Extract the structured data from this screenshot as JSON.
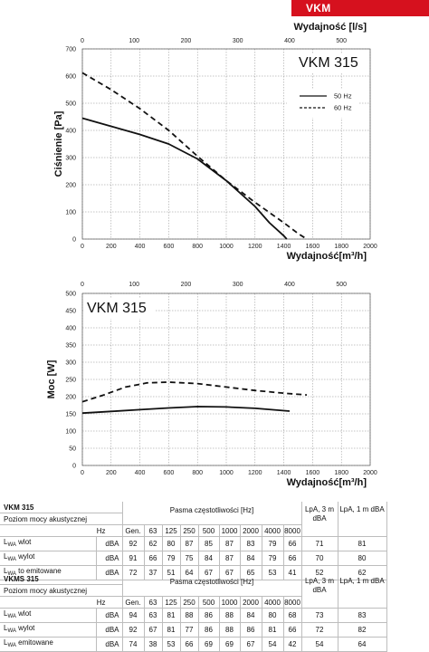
{
  "header": {
    "badge": "VKM"
  },
  "colors": {
    "badge": "#d6111e",
    "curve": "#111111"
  },
  "chart_data": [
    {
      "type": "line",
      "title": "VKM 315",
      "ylabel": "Ciśnienie [Pa]",
      "xlabel": "Wydajność[m³/h]",
      "x2label": "Wydajność [l/s]",
      "xlim": [
        0,
        2000
      ],
      "ylim": [
        0,
        700
      ],
      "xticks": [
        "0",
        "200",
        "400",
        "600",
        "800",
        "1000",
        "1200",
        "1400",
        "1600",
        "1800",
        "2000"
      ],
      "yticks": [
        "0",
        "100",
        "200",
        "300",
        "400",
        "500",
        "600",
        "700"
      ],
      "x2ticks": [
        "0",
        "100",
        "200",
        "300",
        "400",
        "500"
      ],
      "grid": true,
      "legend_position": "top-right",
      "series": [
        {
          "name": "50 Hz",
          "style": "solid",
          "x": [
            0,
            200,
            400,
            600,
            800,
            1000,
            1200,
            1300,
            1400,
            1420
          ],
          "y": [
            445,
            415,
            385,
            350,
            295,
            215,
            120,
            60,
            12,
            0
          ]
        },
        {
          "name": "60 Hz",
          "style": "dashed",
          "x": [
            0,
            200,
            400,
            600,
            800,
            1000,
            1200,
            1400,
            1500,
            1560
          ],
          "y": [
            612,
            550,
            480,
            400,
            305,
            215,
            135,
            60,
            20,
            0
          ]
        }
      ]
    },
    {
      "type": "line",
      "title": "VKM 315",
      "ylabel": "Moc [W]",
      "xlabel": "Wydajność[m³/h]",
      "x2label": "Wydajność [l/s]",
      "xlim": [
        0,
        2000
      ],
      "ylim": [
        0,
        500
      ],
      "xticks": [
        "0",
        "200",
        "400",
        "600",
        "800",
        "1000",
        "1200",
        "1400",
        "1600",
        "1800",
        "2000"
      ],
      "yticks": [
        "0",
        "50",
        "100",
        "150",
        "200",
        "250",
        "300",
        "350",
        "400",
        "450",
        "500"
      ],
      "x2ticks": [
        "0",
        "100",
        "200",
        "300",
        "400",
        "500"
      ],
      "grid": true,
      "series": [
        {
          "name": "",
          "style": "solid",
          "x": [
            0,
            200,
            400,
            600,
            800,
            1000,
            1200,
            1440
          ],
          "y": [
            152,
            157,
            162,
            167,
            171,
            170,
            166,
            158
          ]
        },
        {
          "name": "",
          "style": "dashed",
          "x": [
            0,
            150,
            300,
            450,
            600,
            800,
            1000,
            1200,
            1400,
            1560
          ],
          "y": [
            185,
            205,
            228,
            240,
            242,
            238,
            228,
            218,
            210,
            205
          ]
        }
      ]
    }
  ],
  "tables": [
    {
      "title": "VKM 315",
      "subtitle": "Poziom mocy akustycznej",
      "band_label": "Pasma częstotliwości [Hz]",
      "hz_label": "Hz",
      "columns": [
        "Gen.",
        "63",
        "125",
        "250",
        "500",
        "1000",
        "2000",
        "4000",
        "8000"
      ],
      "lpa3": "LpA, 3 m dBA",
      "lpa1": "LpA, 1 m dBA",
      "rows": [
        {
          "label": "wlot",
          "unit": "dBA",
          "values": [
            "92",
            "62",
            "80",
            "87",
            "85",
            "87",
            "83",
            "79",
            "66"
          ],
          "lpa3": "71",
          "lpa1": "81"
        },
        {
          "label": "wylot",
          "unit": "dBA",
          "values": [
            "91",
            "66",
            "79",
            "75",
            "84",
            "87",
            "84",
            "79",
            "66"
          ],
          "lpa3": "70",
          "lpa1": "80"
        },
        {
          "label": "to  emitowane",
          "unit": "dBA",
          "values": [
            "72",
            "37",
            "51",
            "64",
            "67",
            "67",
            "65",
            "53",
            "41"
          ],
          "lpa3": "52",
          "lpa1": "62"
        }
      ]
    },
    {
      "title": "VKMS 315",
      "subtitle": "Poziom mocy akustycznej",
      "band_label": "Pasma częstotliwości [Hz]",
      "hz_label": "Hz",
      "columns": [
        "Gen.",
        "63",
        "125",
        "250",
        "500",
        "1000",
        "2000",
        "4000",
        "8000"
      ],
      "lpa3": "LpA, 3 m dBA",
      "lpa1": "LpA, 1 m dBA",
      "rows": [
        {
          "label": "wlot",
          "unit": "dBA",
          "values": [
            "94",
            "63",
            "81",
            "88",
            "86",
            "88",
            "84",
            "80",
            "68"
          ],
          "lpa3": "73",
          "lpa1": "83"
        },
        {
          "label": "wylot",
          "unit": "dBA",
          "values": [
            "92",
            "67",
            "81",
            "77",
            "86",
            "88",
            "86",
            "81",
            "66"
          ],
          "lpa3": "72",
          "lpa1": "82"
        },
        {
          "label": "emitowane",
          "unit": "dBA",
          "values": [
            "74",
            "38",
            "53",
            "66",
            "69",
            "69",
            "67",
            "54",
            "42"
          ],
          "lpa3": "54",
          "lpa1": "64"
        }
      ]
    }
  ]
}
